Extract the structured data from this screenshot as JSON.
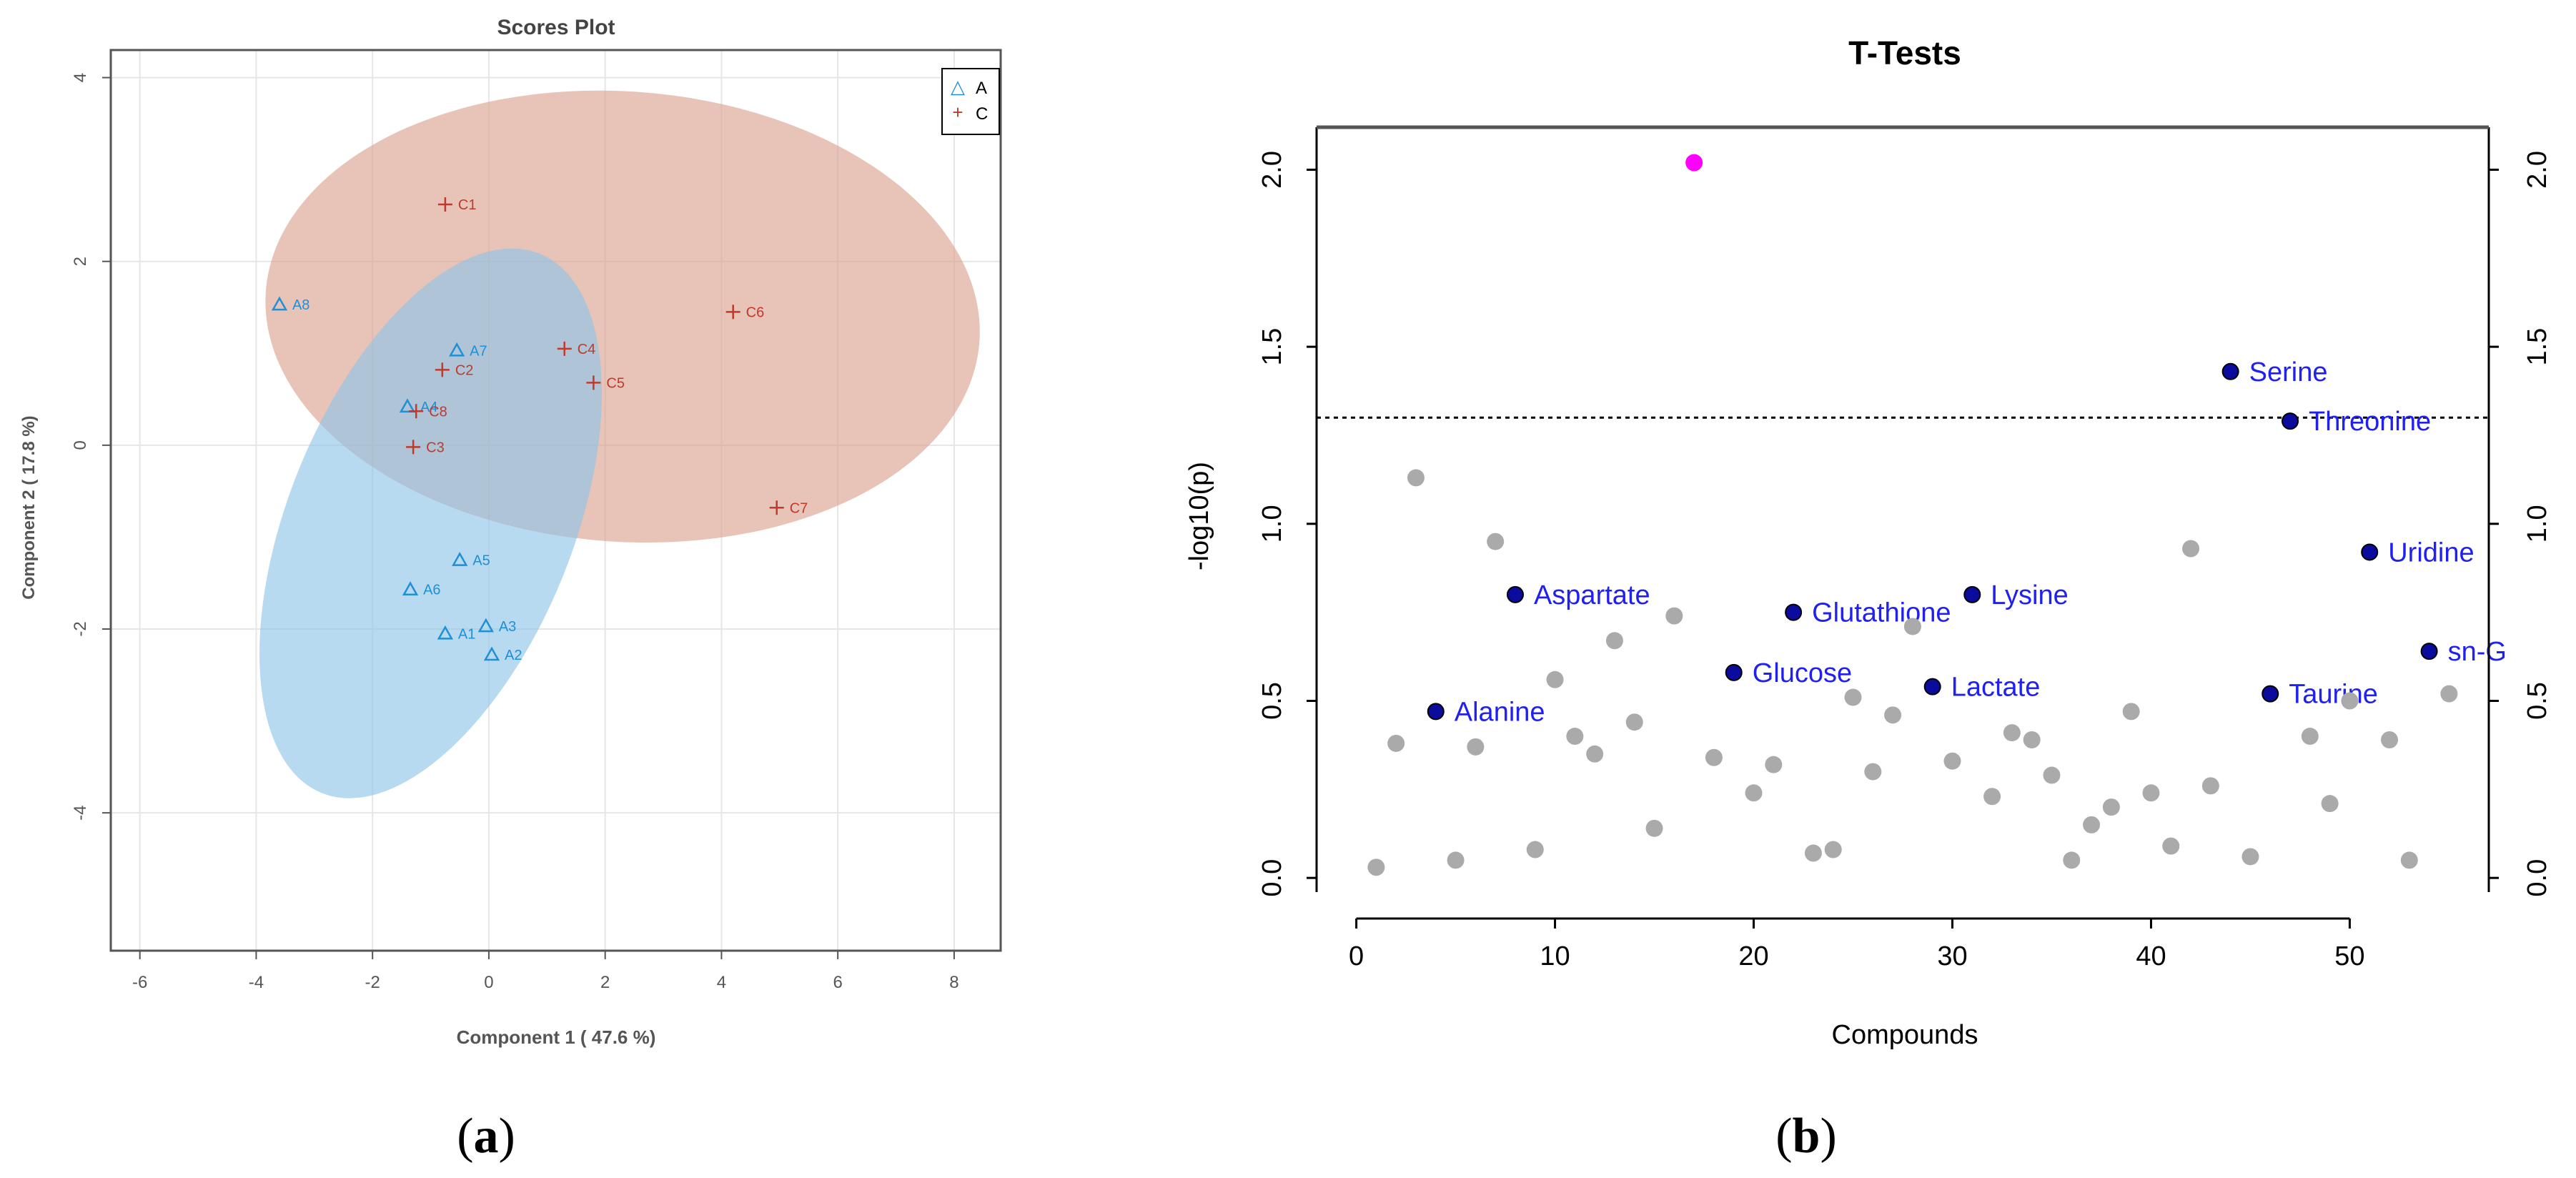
{
  "panels": [
    {
      "caption_open": "(",
      "caption_letter": "a",
      "caption_close": ")"
    },
    {
      "caption_open": "(",
      "caption_letter": "b",
      "caption_close": ")"
    }
  ],
  "chart_data": [
    {
      "type": "scatter",
      "title": "Scores Plot",
      "xlabel": "Component 1 ( 47.6 %)",
      "ylabel": "Component 2 ( 17.8 %)",
      "xlim": [
        -6.5,
        8.8
      ],
      "ylim": [
        -5.5,
        4.3
      ],
      "xticks": [
        -6,
        -4,
        -2,
        0,
        2,
        4,
        6,
        8
      ],
      "yticks": [
        -4,
        -2,
        0,
        2,
        4
      ],
      "grid": true,
      "legend": {
        "position": "top-right",
        "entries": [
          {
            "name": "A",
            "symbol": "△",
            "color": "#1f8fd6"
          },
          {
            "name": "C",
            "symbol": "+",
            "color": "#c0392b"
          }
        ]
      },
      "series": [
        {
          "name": "A",
          "color": "#1f8fd6",
          "points": [
            {
              "label": "A1",
              "x": -0.75,
              "y": -2.05
            },
            {
              "label": "A2",
              "x": 0.05,
              "y": -2.28
            },
            {
              "label": "A3",
              "x": -0.05,
              "y": -1.97
            },
            {
              "label": "A4",
              "x": -1.4,
              "y": 0.42
            },
            {
              "label": "A5",
              "x": -0.5,
              "y": -1.25
            },
            {
              "label": "A6",
              "x": -1.35,
              "y": -1.57
            },
            {
              "label": "A7",
              "x": -0.55,
              "y": 1.03
            },
            {
              "label": "A8",
              "x": -3.6,
              "y": 1.53
            }
          ]
        },
        {
          "name": "C",
          "color": "#c0392b",
          "points": [
            {
              "label": "C1",
              "x": -0.75,
              "y": 2.62
            },
            {
              "label": "C2",
              "x": -0.8,
              "y": 0.82
            },
            {
              "label": "C3",
              "x": -1.3,
              "y": -0.02
            },
            {
              "label": "C4",
              "x": 1.3,
              "y": 1.05
            },
            {
              "label": "C5",
              "x": 1.8,
              "y": 0.68
            },
            {
              "label": "C6",
              "x": 4.2,
              "y": 1.45
            },
            {
              "label": "C7",
              "x": 4.95,
              "y": -0.68
            },
            {
              "label": "C8",
              "x": -1.25,
              "y": 0.37
            }
          ]
        }
      ],
      "ellipses": [
        {
          "group": "C",
          "cx": 2.3,
          "cy": 1.4,
          "rx": 6.15,
          "ry": 2.45,
          "angle_deg": -4,
          "color": "#d9a08a"
        },
        {
          "group": "A",
          "cx": -1.0,
          "cy": -0.85,
          "rx": 5.0,
          "ry": 1.55,
          "angle_deg": 68,
          "color": "#8cc4e8"
        }
      ]
    },
    {
      "type": "scatter",
      "title": "T-Tests",
      "xlabel": "Compounds",
      "ylabel": "-log10(p)",
      "xlim": [
        -2,
        57
      ],
      "ylim": [
        -0.04,
        2.12
      ],
      "xticks": [
        0,
        10,
        20,
        30,
        40,
        50
      ],
      "yticks": [
        "0.0",
        "0.5",
        "1.0",
        "1.5",
        "2.0"
      ],
      "threshold": 1.3,
      "points": [
        {
          "x": 1,
          "y": 0.03
        },
        {
          "x": 2,
          "y": 0.38
        },
        {
          "x": 3,
          "y": 1.13
        },
        {
          "x": 4,
          "y": 0.47,
          "label": "Alanine"
        },
        {
          "x": 5,
          "y": 0.05
        },
        {
          "x": 6,
          "y": 0.37
        },
        {
          "x": 7,
          "y": 0.95
        },
        {
          "x": 8,
          "y": 0.8,
          "label": "Aspartate"
        },
        {
          "x": 9,
          "y": 0.08
        },
        {
          "x": 10,
          "y": 0.56
        },
        {
          "x": 11,
          "y": 0.4
        },
        {
          "x": 12,
          "y": 0.35
        },
        {
          "x": 13,
          "y": 0.67
        },
        {
          "x": 14,
          "y": 0.44
        },
        {
          "x": 15,
          "y": 0.14
        },
        {
          "x": 16,
          "y": 0.74
        },
        {
          "x": 17,
          "y": 2.02,
          "highlight": true
        },
        {
          "x": 18,
          "y": 0.34
        },
        {
          "x": 19,
          "y": 0.58,
          "label": "Glucose"
        },
        {
          "x": 20,
          "y": 0.24
        },
        {
          "x": 21,
          "y": 0.32
        },
        {
          "x": 22,
          "y": 0.75,
          "label": "Glutathione"
        },
        {
          "x": 23,
          "y": 0.07
        },
        {
          "x": 24,
          "y": 0.08
        },
        {
          "x": 25,
          "y": 0.51
        },
        {
          "x": 26,
          "y": 0.3
        },
        {
          "x": 27,
          "y": 0.46
        },
        {
          "x": 28,
          "y": 0.71
        },
        {
          "x": 29,
          "y": 0.54,
          "label": "Lactate"
        },
        {
          "x": 30,
          "y": 0.33
        },
        {
          "x": 31,
          "y": 0.8,
          "label": "Lysine"
        },
        {
          "x": 32,
          "y": 0.23
        },
        {
          "x": 33,
          "y": 0.41
        },
        {
          "x": 34,
          "y": 0.39
        },
        {
          "x": 35,
          "y": 0.29
        },
        {
          "x": 36,
          "y": 0.05
        },
        {
          "x": 37,
          "y": 0.15
        },
        {
          "x": 38,
          "y": 0.2
        },
        {
          "x": 39,
          "y": 0.47
        },
        {
          "x": 40,
          "y": 0.24
        },
        {
          "x": 41,
          "y": 0.09
        },
        {
          "x": 42,
          "y": 0.93
        },
        {
          "x": 43,
          "y": 0.26
        },
        {
          "x": 44,
          "y": 1.43,
          "label": "Serine"
        },
        {
          "x": 45,
          "y": 0.06
        },
        {
          "x": 46,
          "y": 0.52,
          "label": "Taurine"
        },
        {
          "x": 47,
          "y": 1.29,
          "label": "Threonine"
        },
        {
          "x": 48,
          "y": 0.4
        },
        {
          "x": 49,
          "y": 0.21
        },
        {
          "x": 50,
          "y": 0.5
        },
        {
          "x": 51,
          "y": 0.92,
          "label": "Uridine"
        },
        {
          "x": 52,
          "y": 0.39
        },
        {
          "x": 53,
          "y": 0.05
        },
        {
          "x": 54,
          "y": 0.64,
          "label": "sn-G"
        },
        {
          "x": 55,
          "y": 0.52
        }
      ],
      "colors": {
        "default": "#aaaaaa",
        "labeled": "#0b0b9e",
        "label_text": "#2020f0",
        "highlight": "#ff00ff"
      }
    }
  ]
}
